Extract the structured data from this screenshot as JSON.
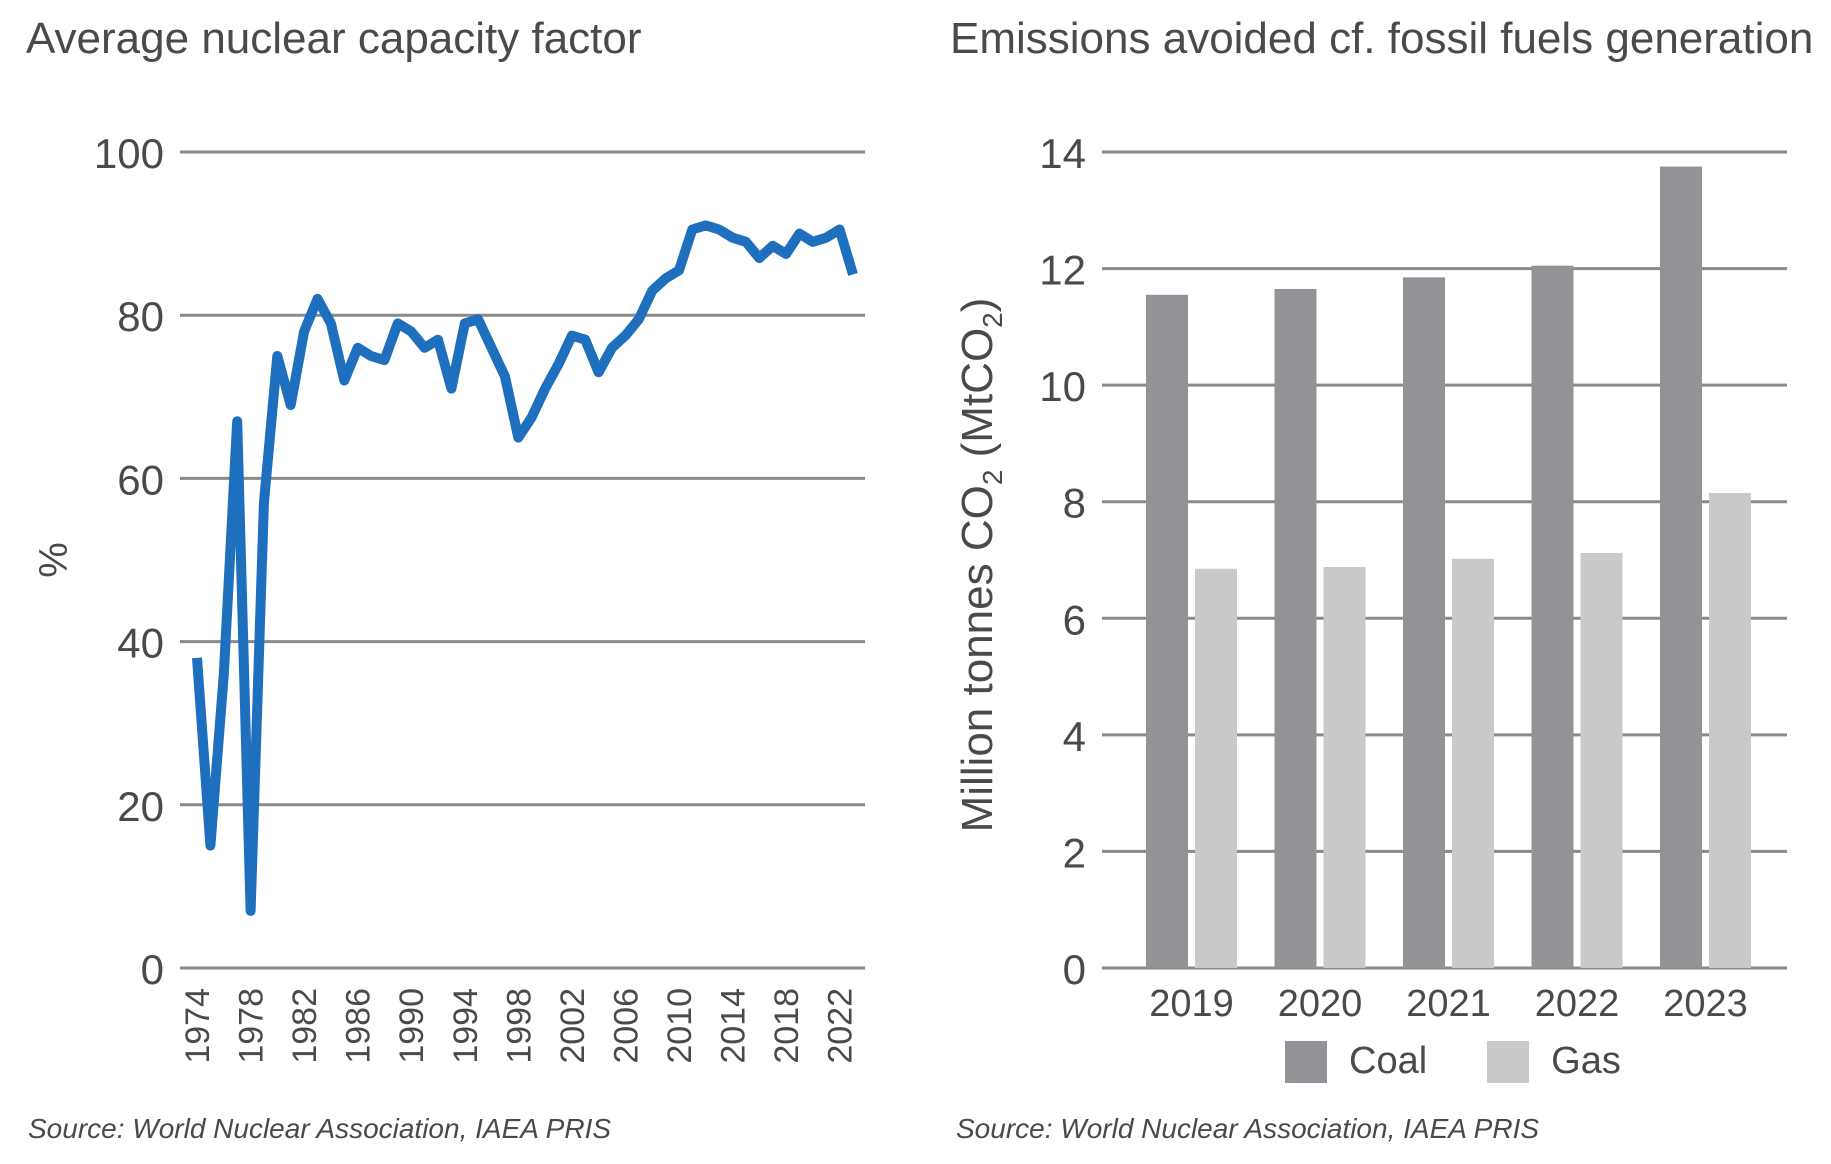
{
  "chart_data": [
    {
      "type": "line",
      "title": "Average nuclear capacity factor",
      "ylabel": "%",
      "xlabel": "",
      "ylim": [
        0,
        100
      ],
      "yticks": [
        0,
        20,
        40,
        60,
        80,
        100
      ],
      "xticks": [
        1974,
        1978,
        1982,
        1986,
        1990,
        1994,
        1998,
        2002,
        2006,
        2010,
        2014,
        2018,
        2022
      ],
      "grid": true,
      "series": [
        {
          "color": "#1f6fbf",
          "x": [
            1974,
            1975,
            1976,
            1977,
            1978,
            1979,
            1980,
            1981,
            1982,
            1983,
            1984,
            1985,
            1986,
            1987,
            1988,
            1989,
            1990,
            1991,
            1992,
            1993,
            1994,
            1995,
            1996,
            1997,
            1998,
            1999,
            2000,
            2001,
            2002,
            2003,
            2004,
            2005,
            2006,
            2007,
            2008,
            2009,
            2010,
            2011,
            2012,
            2013,
            2014,
            2015,
            2016,
            2017,
            2018,
            2019,
            2020,
            2021,
            2022,
            2023
          ],
          "values": [
            38,
            15,
            36,
            67,
            7,
            57,
            75,
            69,
            78,
            82,
            79,
            72,
            76,
            75,
            74.5,
            79,
            78,
            76,
            77,
            71,
            79,
            79.5,
            76,
            72.5,
            65,
            67.5,
            71,
            74,
            77.5,
            77,
            73,
            76,
            77.5,
            79.5,
            83,
            84.5,
            85.5,
            90.5,
            91,
            90.5,
            89.5,
            89,
            87,
            88.5,
            87.5,
            90,
            89,
            89.5,
            90.5,
            85
          ]
        }
      ],
      "source": "Source: World Nuclear Association, IAEA PRIS"
    },
    {
      "type": "bar",
      "title": "Emissions avoided cf. fossil fuels generation",
      "ylabel_parts": [
        "Million tonnes CO",
        "2",
        " (MtCO",
        "2",
        ")"
      ],
      "xlabel": "",
      "ylim": [
        0,
        14
      ],
      "yticks": [
        0,
        2,
        4,
        6,
        8,
        10,
        12,
        14
      ],
      "grid": true,
      "categories": [
        "2019",
        "2020",
        "2021",
        "2022",
        "2023"
      ],
      "series": [
        {
          "name": "Coal",
          "color": "#929396",
          "values": [
            11.55,
            11.65,
            11.85,
            12.05,
            13.75
          ]
        },
        {
          "name": "Gas",
          "color": "#c8c9cb",
          "values": [
            6.85,
            6.88,
            7.02,
            7.12,
            8.15
          ]
        }
      ],
      "legend": "bottom-center",
      "source": "Source: World Nuclear Association, IAEA PRIS"
    }
  ]
}
